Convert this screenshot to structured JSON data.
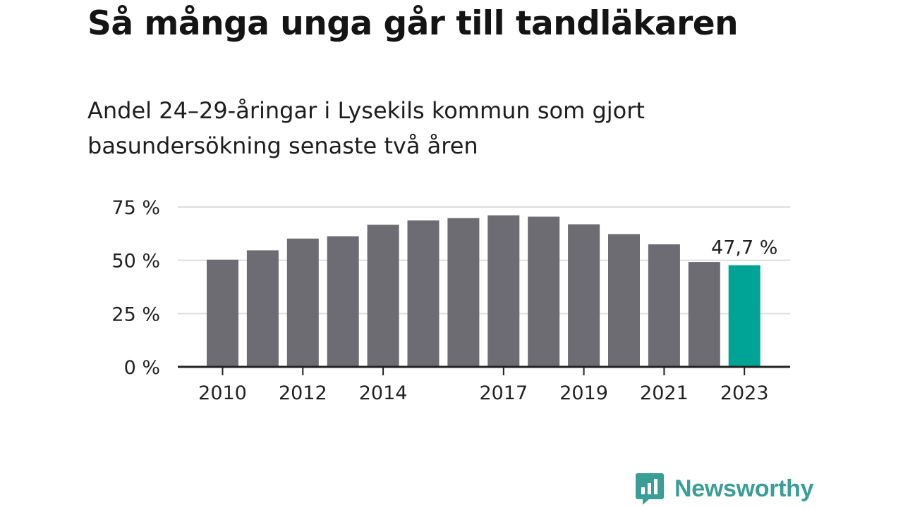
{
  "chart_data": {
    "type": "bar",
    "title": "Så många unga går till tandläkaren",
    "subtitle": "Andel 24–29-åringar i Lysekils kommun som gjort basundersökning senaste två åren",
    "categories": [
      "2010",
      "2011",
      "2012",
      "2013",
      "2014",
      "2015",
      "2016",
      "2017",
      "2018",
      "2019",
      "2020",
      "2021",
      "2022",
      "2023"
    ],
    "tick_labels": [
      "2010",
      "",
      "2012",
      "",
      "2014",
      "",
      "",
      "2017",
      "",
      "2019",
      "",
      "2021",
      "",
      "2023"
    ],
    "values": [
      50.3,
      54.7,
      60.2,
      61.3,
      66.7,
      68.7,
      69.8,
      71.1,
      70.5,
      66.9,
      62.3,
      57.5,
      49.2,
      47.7
    ],
    "ylim": [
      0,
      75
    ],
    "yticks": [
      "0 %",
      "25 %",
      "50 %",
      "75 %"
    ],
    "ytick_values": [
      0,
      25,
      50,
      75
    ],
    "highlight_index": 13,
    "highlight_label": "47,7 %",
    "grid": true,
    "colors": {
      "bar": "#6d6c72",
      "highlight": "#00a497",
      "grid": "#dddddd",
      "axis": "#222222",
      "text": "#222222"
    }
  },
  "logo": {
    "text": "Newsworthy",
    "icon": "newsworthy-logo-icon",
    "color": "#3b9e96"
  }
}
